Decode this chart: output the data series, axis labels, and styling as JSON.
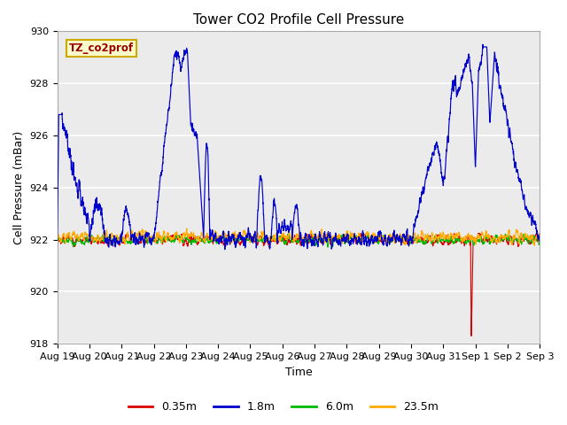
{
  "title": "Tower CO2 Profile Cell Pressure",
  "xlabel": "Time",
  "ylabel": "Cell Pressure (mBar)",
  "ylim": [
    918,
    930
  ],
  "xlim_days": [
    0,
    15
  ],
  "background_color": "#ebebeb",
  "legend_label": "TZ_co2prof",
  "legend_box_color": "#ffffcc",
  "legend_box_edge": "#ccaa00",
  "series": [
    {
      "label": "0.35m",
      "color": "#dd0000"
    },
    {
      "label": "1.8m",
      "color": "#0000cc"
    },
    {
      "label": "6.0m",
      "color": "#00bb00"
    },
    {
      "label": "23.5m",
      "color": "#ffaa00"
    }
  ],
  "xtick_labels": [
    "Aug 19",
    "Aug 20",
    "Aug 21",
    "Aug 22",
    "Aug 23",
    "Aug 24",
    "Aug 25",
    "Aug 26",
    "Aug 27",
    "Aug 28",
    "Aug 29",
    "Aug 30",
    "Aug 31",
    "Sep 1",
    "Sep 2",
    "Sep 3"
  ],
  "xtick_positions": [
    0,
    1,
    2,
    3,
    4,
    5,
    6,
    7,
    8,
    9,
    10,
    11,
    12,
    13,
    14,
    15
  ],
  "ytick_labels": [
    "918",
    "920",
    "922",
    "924",
    "926",
    "928",
    "930"
  ],
  "ytick_positions": [
    918,
    920,
    922,
    924,
    926,
    928,
    930
  ],
  "title_fontsize": 11,
  "axis_label_fontsize": 9,
  "tick_fontsize": 8
}
